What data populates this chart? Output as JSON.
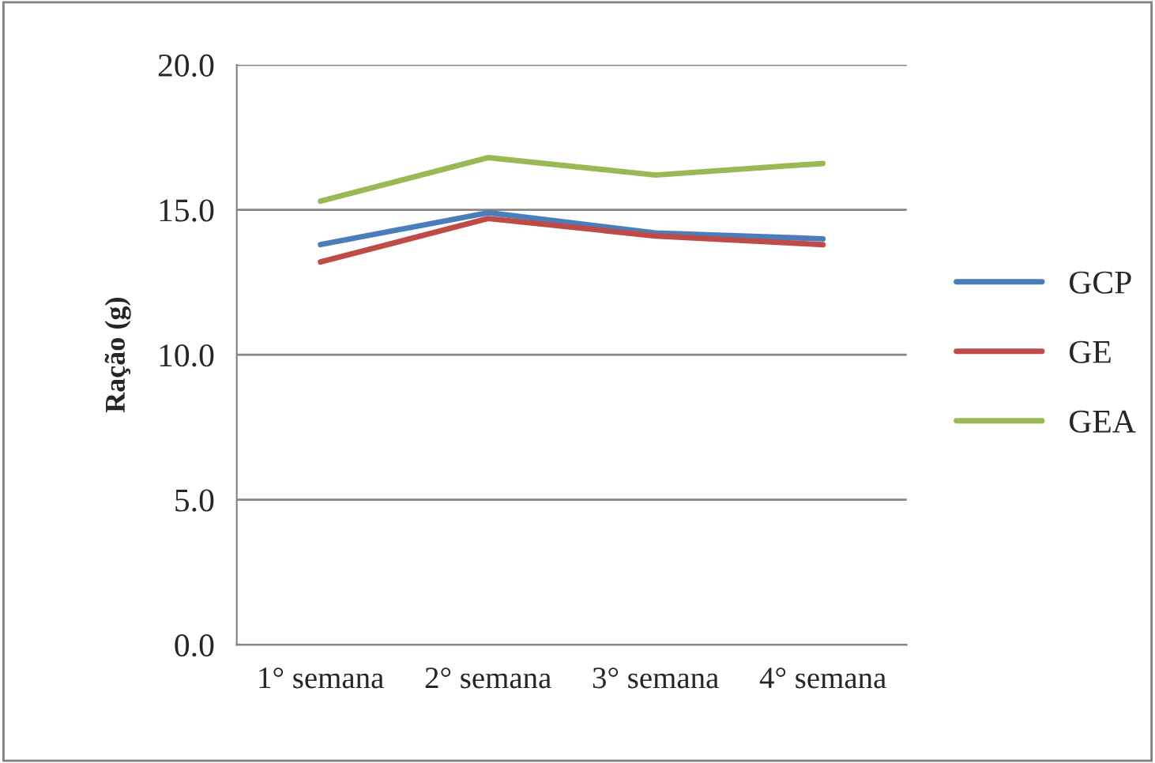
{
  "chart_data": {
    "type": "line",
    "ylabel": "Ração (g)",
    "categories": [
      "1° semana",
      "2° semana",
      "3° semana",
      "4° semana"
    ],
    "series": [
      {
        "name": "GCP",
        "color": "#4a7ebb",
        "values": [
          13.8,
          14.9,
          14.2,
          14.0
        ]
      },
      {
        "name": "GE",
        "color": "#be4b48",
        "values": [
          13.2,
          14.7,
          14.1,
          13.8
        ]
      },
      {
        "name": "GEA",
        "color": "#98b954",
        "values": [
          15.3,
          16.8,
          16.2,
          16.6
        ]
      }
    ],
    "ylim": [
      0,
      20
    ],
    "yticks": [
      {
        "value": 0,
        "label": "0.0"
      },
      {
        "value": 5,
        "label": "5.0"
      },
      {
        "value": 10,
        "label": "10.0"
      },
      {
        "value": 15,
        "label": "15.0"
      },
      {
        "value": 20,
        "label": "20.0"
      }
    ],
    "grid": "y",
    "legend": "right",
    "marker": "none",
    "line_style": "solid"
  }
}
